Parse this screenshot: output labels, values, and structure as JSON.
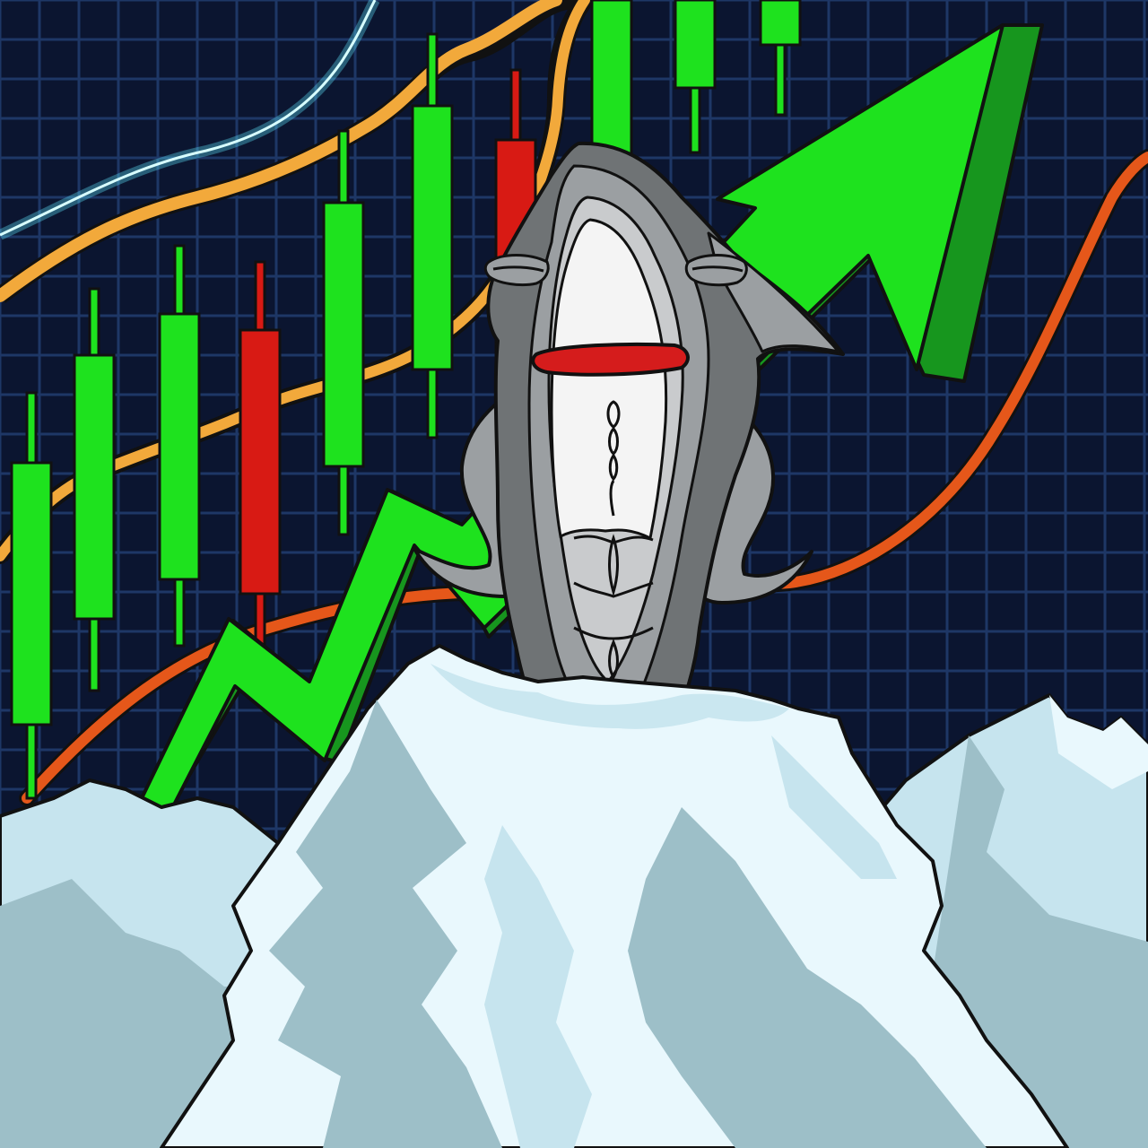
{
  "illustration": {
    "subject": "whale-on-iceberg",
    "colors": {
      "background": "#0b1530",
      "grid": "#1e3766",
      "candle_up": "#1ee21e",
      "candle_down": "#d81a14",
      "arrow_face": "#1ee21e",
      "arrow_side": "#17961e",
      "line_orange": "#f2a93b",
      "line_red_orange": "#e5571a",
      "line_cyan": "#b8ffff",
      "whale_dark": "#6f7375",
      "whale_mid": "#9b9fa2",
      "whale_light": "#c9cbcd",
      "whale_belly": "#f4f4f4",
      "mouth": "#d51c1c",
      "ice_light": "#e9f8fd",
      "ice_mid": "#c6e4ee",
      "ice_dark": "#9dbfc8"
    }
  }
}
